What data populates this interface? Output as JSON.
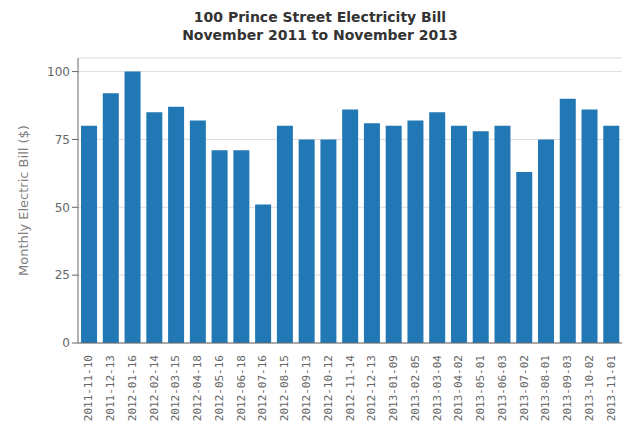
{
  "chart_data": {
    "type": "bar",
    "title": "100 Prince Street Electricity Bill\nNovember 2011 to November 2013",
    "ylabel": "Monthly Electric Bill ($)",
    "categories": [
      "2011-11-10",
      "2011-12-13",
      "2012-01-16",
      "2012-02-14",
      "2012-03-15",
      "2012-04-18",
      "2012-05-16",
      "2012-06-18",
      "2012-07-16",
      "2012-08-15",
      "2012-09-13",
      "2012-10-12",
      "2012-11-14",
      "2012-12-13",
      "2013-01-09",
      "2013-02-05",
      "2013-03-04",
      "2013-04-02",
      "2013-05-01",
      "2013-06-03",
      "2013-07-02",
      "2013-08-01",
      "2013-09-03",
      "2013-10-02",
      "2013-11-01"
    ],
    "values": [
      80,
      92,
      100,
      85,
      87,
      82,
      71,
      71,
      51,
      80,
      75,
      75,
      86,
      81,
      80,
      82,
      85,
      80,
      78,
      80,
      63,
      75,
      90,
      86,
      80
    ],
    "color": "#2178b5",
    "ylim": [
      0,
      105
    ],
    "yticks": [
      0,
      25,
      50,
      75,
      100
    ],
    "grid": true
  }
}
